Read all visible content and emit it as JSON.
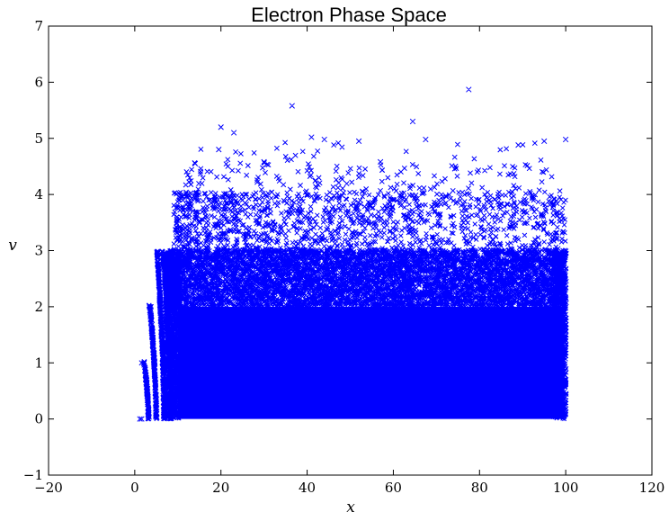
{
  "chart_data": {
    "type": "scatter",
    "title": "Electron Phase Space",
    "xlabel": "x",
    "ylabel": "v",
    "xlim": [
      -20,
      120
    ],
    "ylim": [
      -1,
      7
    ],
    "xticks": [
      "−20",
      "0",
      "20",
      "40",
      "60",
      "80",
      "100",
      "120"
    ],
    "yticks": [
      "−1",
      "0",
      "1",
      "2",
      "3",
      "4",
      "5",
      "6",
      "7"
    ],
    "grid": false,
    "legend": "none",
    "marker": "x",
    "color": "#0000ff",
    "bands": [
      {
        "v_range": [
          0,
          1
        ],
        "x_range": [
          8,
          100
        ],
        "density": "very dense"
      },
      {
        "v_range": [
          1,
          2
        ],
        "x_range": [
          10,
          100
        ],
        "density": "very dense"
      },
      {
        "v_range": [
          2,
          3
        ],
        "x_range": [
          10,
          100
        ],
        "density": "dense"
      },
      {
        "v_range": [
          3,
          4
        ],
        "x_range": [
          8,
          100
        ],
        "density": "moderate"
      },
      {
        "v_range": [
          4,
          5.9
        ],
        "x_range": [
          10,
          100
        ],
        "density": "sparse"
      }
    ],
    "left_edge_streaks": [
      {
        "x_start": 1,
        "x_end": 2,
        "v_range": [
          0,
          0
        ]
      },
      {
        "x_start": 1.5,
        "x_end": 4,
        "v_range": [
          0,
          1
        ]
      },
      {
        "x_start": 3,
        "x_end": 5,
        "v_range": [
          0,
          2
        ]
      },
      {
        "x_start": 5,
        "x_end": 7,
        "v_range": [
          0,
          3
        ]
      },
      {
        "x_start": 7,
        "x_end": 9,
        "v_range": [
          0,
          3
        ]
      }
    ],
    "outliers": [
      {
        "x": 20,
        "v": 5.2
      },
      {
        "x": 23,
        "v": 5.1
      },
      {
        "x": 36.5,
        "v": 5.58
      },
      {
        "x": 41,
        "v": 5.02
      },
      {
        "x": 52,
        "v": 4.95
      },
      {
        "x": 64.5,
        "v": 5.3
      },
      {
        "x": 67.5,
        "v": 4.98
      },
      {
        "x": 77.5,
        "v": 5.87
      },
      {
        "x": 95,
        "v": 4.95
      },
      {
        "x": 100,
        "v": 4.98
      },
      {
        "x": 14,
        "v": 4.55
      },
      {
        "x": 19.5,
        "v": 4.8
      },
      {
        "x": 30,
        "v": 4.58
      },
      {
        "x": 44,
        "v": 4.98
      },
      {
        "x": 57,
        "v": 4.58
      },
      {
        "x": 89,
        "v": 4.88
      }
    ]
  }
}
